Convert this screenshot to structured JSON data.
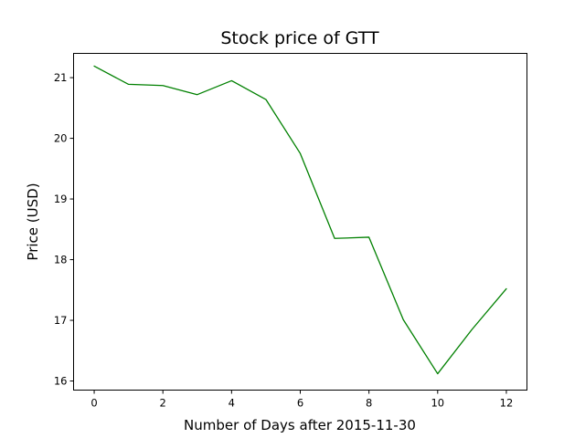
{
  "chart_data": {
    "type": "line",
    "title": "Stock price of GTT",
    "xlabel": "Number of Days after 2015-11-30",
    "ylabel": "Price (USD)",
    "xlim": [
      -0.6,
      12.6
    ],
    "ylim": [
      15.85,
      21.4
    ],
    "xticks": [
      0,
      2,
      4,
      6,
      8,
      10,
      12
    ],
    "yticks": [
      16,
      17,
      18,
      19,
      20,
      21
    ],
    "grid": false,
    "series": [
      {
        "color": "#008000",
        "x": [
          0,
          1,
          2,
          3,
          4,
          5,
          6,
          7,
          8,
          9,
          10,
          11,
          12
        ],
        "y": [
          21.19,
          20.89,
          20.87,
          20.72,
          20.95,
          20.64,
          19.75,
          18.35,
          18.37,
          17.01,
          16.12,
          16.85,
          17.52
        ]
      }
    ]
  }
}
